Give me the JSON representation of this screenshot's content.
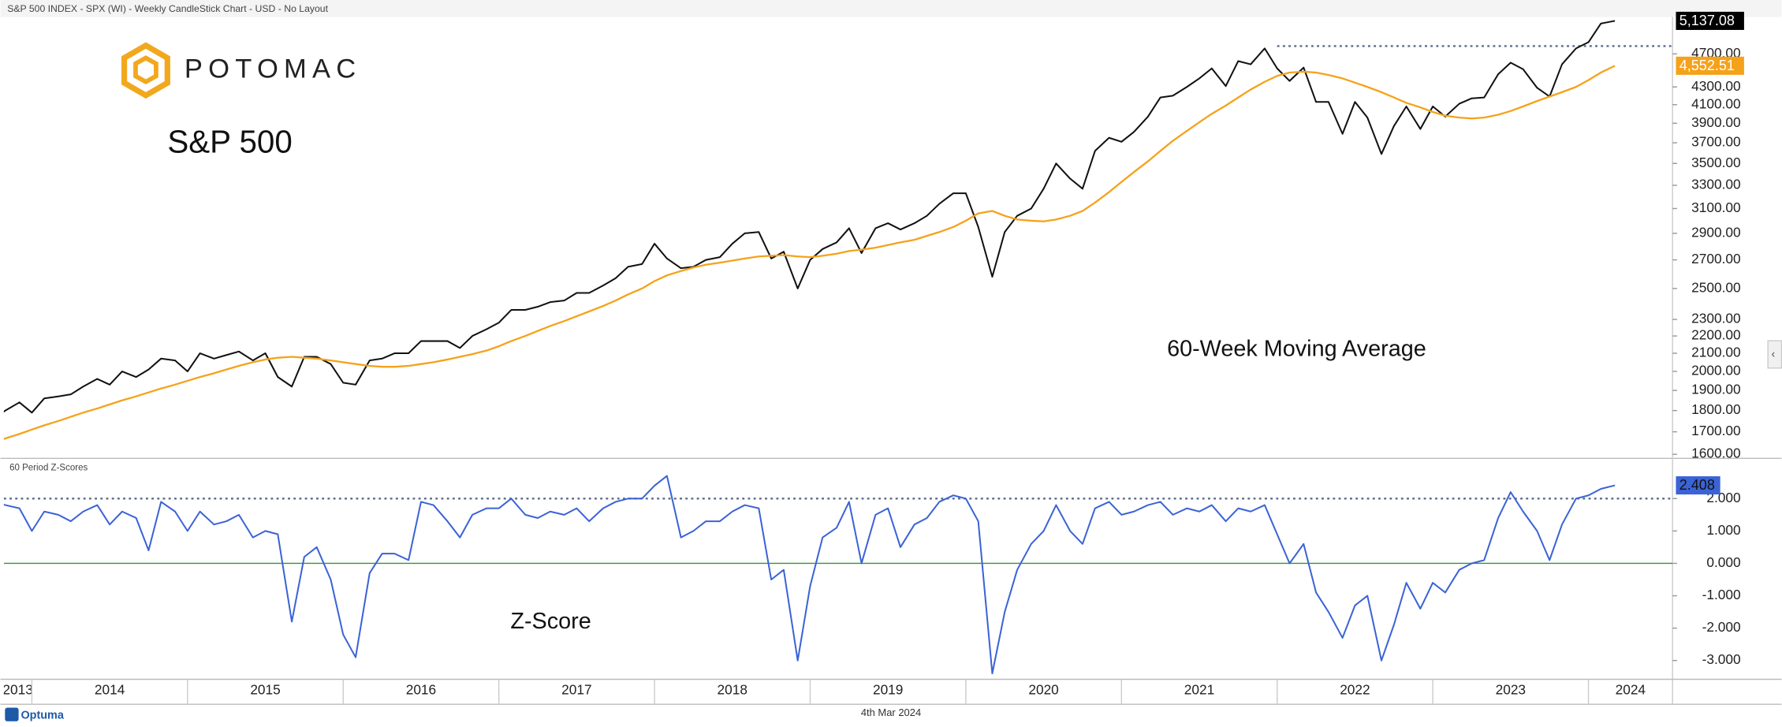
{
  "brand": {
    "logo": "POTOMAC",
    "footer_logo": "Optuma",
    "footer_date": "4th Mar 2024"
  },
  "chart_data": [
    {
      "type": "line",
      "title": "S&P 500 INDEX - SPX (WI) - Weekly CandleStick Chart - USD - No Layout",
      "annotations": [
        "S&P 500",
        "60-Week Moving Average"
      ],
      "log_scale": true,
      "xlim": [
        2013.82,
        2024.54
      ],
      "ylim": [
        1590,
        5190
      ],
      "x": [
        2013.75,
        2013.83,
        2013.92,
        2014.0,
        2014.08,
        2014.17,
        2014.25,
        2014.33,
        2014.42,
        2014.5,
        2014.58,
        2014.67,
        2014.75,
        2014.83,
        2014.92,
        2015.0,
        2015.08,
        2015.17,
        2015.25,
        2015.33,
        2015.42,
        2015.5,
        2015.58,
        2015.67,
        2015.75,
        2015.83,
        2015.92,
        2016.0,
        2016.08,
        2016.17,
        2016.25,
        2016.33,
        2016.42,
        2016.5,
        2016.58,
        2016.67,
        2016.75,
        2016.83,
        2016.92,
        2017.0,
        2017.08,
        2017.17,
        2017.25,
        2017.33,
        2017.42,
        2017.5,
        2017.58,
        2017.67,
        2017.75,
        2017.83,
        2017.92,
        2018.0,
        2018.08,
        2018.17,
        2018.25,
        2018.33,
        2018.42,
        2018.5,
        2018.58,
        2018.67,
        2018.75,
        2018.83,
        2018.92,
        2019.0,
        2019.08,
        2019.17,
        2019.25,
        2019.33,
        2019.42,
        2019.5,
        2019.58,
        2019.67,
        2019.75,
        2019.83,
        2019.92,
        2020.0,
        2020.08,
        2020.17,
        2020.25,
        2020.33,
        2020.42,
        2020.5,
        2020.58,
        2020.67,
        2020.75,
        2020.83,
        2020.92,
        2021.0,
        2021.08,
        2021.17,
        2021.25,
        2021.33,
        2021.42,
        2021.5,
        2021.58,
        2021.67,
        2021.75,
        2021.83,
        2021.92,
        2022.0,
        2022.08,
        2022.17,
        2022.25,
        2022.33,
        2022.42,
        2022.5,
        2022.58,
        2022.67,
        2022.75,
        2022.83,
        2022.92,
        2023.0,
        2023.08,
        2023.17,
        2023.25,
        2023.33,
        2023.42,
        2023.5,
        2023.58,
        2023.67,
        2023.75,
        2023.83,
        2023.92,
        2024.0,
        2024.08,
        2024.17
      ],
      "series": [
        {
          "name": "S&P 500",
          "color": "#111111",
          "last_value_label": "5,137.08",
          "label_fill": "#000000",
          "label_text": "#ffffff",
          "values": [
            1760,
            1800,
            1840,
            1790,
            1860,
            1870,
            1880,
            1920,
            1960,
            1930,
            2000,
            1970,
            2010,
            2070,
            2060,
            2000,
            2100,
            2070,
            2090,
            2110,
            2060,
            2100,
            1970,
            1920,
            2080,
            2080,
            2040,
            1940,
            1930,
            2060,
            2070,
            2100,
            2100,
            2170,
            2170,
            2170,
            2130,
            2200,
            2240,
            2280,
            2360,
            2360,
            2380,
            2410,
            2420,
            2470,
            2470,
            2520,
            2570,
            2650,
            2670,
            2820,
            2710,
            2640,
            2650,
            2700,
            2720,
            2820,
            2900,
            2910,
            2710,
            2760,
            2500,
            2700,
            2780,
            2830,
            2940,
            2750,
            2940,
            2980,
            2930,
            2980,
            3040,
            3140,
            3230,
            3230,
            2950,
            2580,
            2910,
            3040,
            3100,
            3270,
            3500,
            3360,
            3270,
            3620,
            3750,
            3710,
            3810,
            3970,
            4180,
            4200,
            4300,
            4400,
            4520,
            4310,
            4610,
            4570,
            4770,
            4520,
            4370,
            4530,
            4130,
            4130,
            3790,
            4130,
            3960,
            3590,
            3870,
            4080,
            3840,
            4080,
            3970,
            4110,
            4170,
            4180,
            4450,
            4590,
            4510,
            4290,
            4190,
            4570,
            4770,
            4850,
            5100,
            5137.08
          ]
        },
        {
          "name": "60-Week Moving Average",
          "color": "#f5a21b",
          "last_value_label": "4,552.51",
          "label_fill": "#f5a21b",
          "label_text": "#ffffff",
          "values": [
            1650,
            1670,
            1690,
            1710,
            1730,
            1750,
            1770,
            1790,
            1810,
            1830,
            1850,
            1870,
            1890,
            1910,
            1930,
            1950,
            1970,
            1990,
            2010,
            2030,
            2050,
            2065,
            2075,
            2080,
            2075,
            2070,
            2060,
            2050,
            2040,
            2030,
            2025,
            2025,
            2030,
            2040,
            2050,
            2065,
            2080,
            2095,
            2115,
            2140,
            2170,
            2200,
            2230,
            2260,
            2290,
            2320,
            2350,
            2385,
            2420,
            2460,
            2500,
            2550,
            2590,
            2620,
            2645,
            2665,
            2680,
            2695,
            2710,
            2725,
            2730,
            2735,
            2725,
            2720,
            2730,
            2745,
            2765,
            2775,
            2790,
            2810,
            2830,
            2850,
            2880,
            2910,
            2950,
            3000,
            3060,
            3080,
            3040,
            3010,
            3000,
            2995,
            3010,
            3040,
            3080,
            3150,
            3240,
            3330,
            3420,
            3520,
            3620,
            3720,
            3820,
            3910,
            4000,
            4090,
            4180,
            4270,
            4360,
            4430,
            4470,
            4480,
            4470,
            4440,
            4400,
            4350,
            4300,
            4240,
            4180,
            4120,
            4070,
            4020,
            3980,
            3960,
            3950,
            3960,
            3990,
            4030,
            4080,
            4140,
            4190,
            4240,
            4300,
            4380,
            4470,
            4552.51
          ]
        }
      ],
      "yticks": [
        {
          "value": 1600,
          "label": "1600.00"
        },
        {
          "value": 1700,
          "label": "1700.00"
        },
        {
          "value": 1800,
          "label": "1800.00"
        },
        {
          "value": 1900,
          "label": "1900.00"
        },
        {
          "value": 2000,
          "label": "2000.00"
        },
        {
          "value": 2100,
          "label": "2100.00"
        },
        {
          "value": 2200,
          "label": "2200.00"
        },
        {
          "value": 2300,
          "label": "2300.00"
        },
        {
          "value": 2500,
          "label": "2500.00"
        },
        {
          "value": 2700,
          "label": "2700.00"
        },
        {
          "value": 2900,
          "label": "2900.00"
        },
        {
          "value": 3100,
          "label": "3100.00"
        },
        {
          "value": 3300,
          "label": "3300.00"
        },
        {
          "value": 3500,
          "label": "3500.00"
        },
        {
          "value": 3700,
          "label": "3700.00"
        },
        {
          "value": 3900,
          "label": "3900.00"
        },
        {
          "value": 4100,
          "label": "4100.00"
        },
        {
          "value": 4300,
          "label": "4300.00"
        },
        {
          "value": 4700,
          "label": "4700.00"
        }
      ],
      "reference_lines": [
        {
          "value": 4800,
          "from": 2022.0,
          "color": "#5a6b8c",
          "style": "dotted"
        }
      ]
    },
    {
      "type": "line",
      "title": "60 Period Z-Scores",
      "annotations": [
        "Z-Score"
      ],
      "log_scale": false,
      "xlim": [
        2013.82,
        2024.54
      ],
      "ylim": [
        -3.58,
        3.19
      ],
      "x": [
        2013.75,
        2013.83,
        2013.92,
        2014.0,
        2014.08,
        2014.17,
        2014.25,
        2014.33,
        2014.42,
        2014.5,
        2014.58,
        2014.67,
        2014.75,
        2014.83,
        2014.92,
        2015.0,
        2015.08,
        2015.17,
        2015.25,
        2015.33,
        2015.42,
        2015.5,
        2015.58,
        2015.67,
        2015.75,
        2015.83,
        2015.92,
        2016.0,
        2016.08,
        2016.17,
        2016.25,
        2016.33,
        2016.42,
        2016.5,
        2016.58,
        2016.67,
        2016.75,
        2016.83,
        2016.92,
        2017.0,
        2017.08,
        2017.17,
        2017.25,
        2017.33,
        2017.42,
        2017.5,
        2017.58,
        2017.67,
        2017.75,
        2017.83,
        2017.92,
        2018.0,
        2018.08,
        2018.17,
        2018.25,
        2018.33,
        2018.42,
        2018.5,
        2018.58,
        2018.67,
        2018.75,
        2018.83,
        2018.92,
        2019.0,
        2019.08,
        2019.17,
        2019.25,
        2019.33,
        2019.42,
        2019.5,
        2019.58,
        2019.67,
        2019.75,
        2019.83,
        2019.92,
        2020.0,
        2020.08,
        2020.17,
        2020.25,
        2020.33,
        2020.42,
        2020.5,
        2020.58,
        2020.67,
        2020.75,
        2020.83,
        2020.92,
        2021.0,
        2021.08,
        2021.17,
        2021.25,
        2021.33,
        2021.42,
        2021.5,
        2021.58,
        2021.67,
        2021.75,
        2021.83,
        2021.92,
        2022.0,
        2022.08,
        2022.17,
        2022.25,
        2022.33,
        2022.42,
        2022.5,
        2022.58,
        2022.67,
        2022.75,
        2022.83,
        2022.92,
        2023.0,
        2023.08,
        2023.17,
        2023.25,
        2023.33,
        2023.42,
        2023.5,
        2023.58,
        2023.67,
        2023.75,
        2023.83,
        2023.92,
        2024.0,
        2024.08,
        2024.17
      ],
      "series": [
        {
          "name": "60 Period Z-Scores",
          "color": "#3b63d6",
          "last_value_label": "2.408",
          "label_fill": "#3b63d6",
          "label_text": "#111111",
          "values": [
            1.9,
            1.8,
            1.7,
            1.0,
            1.6,
            1.5,
            1.3,
            1.6,
            1.8,
            1.2,
            1.6,
            1.4,
            0.4,
            1.9,
            1.6,
            1.0,
            1.6,
            1.2,
            1.3,
            1.5,
            0.8,
            1.0,
            0.9,
            -1.8,
            0.2,
            0.5,
            -0.5,
            -2.2,
            -2.9,
            -0.3,
            0.3,
            0.3,
            0.1,
            1.9,
            1.8,
            1.3,
            0.8,
            1.5,
            1.7,
            1.7,
            2.0,
            1.5,
            1.4,
            1.6,
            1.5,
            1.7,
            1.3,
            1.7,
            1.9,
            2.0,
            2.0,
            2.4,
            2.7,
            0.8,
            1.0,
            1.3,
            1.3,
            1.6,
            1.8,
            1.7,
            -0.5,
            -0.2,
            -3.0,
            -0.7,
            0.8,
            1.1,
            1.9,
            0.0,
            1.5,
            1.7,
            0.5,
            1.2,
            1.4,
            1.9,
            2.1,
            2.0,
            1.3,
            -3.4,
            -1.5,
            -0.2,
            0.6,
            1.0,
            1.8,
            1.0,
            0.6,
            1.7,
            1.9,
            1.5,
            1.6,
            1.8,
            1.9,
            1.5,
            1.7,
            1.6,
            1.8,
            1.3,
            1.7,
            1.6,
            1.8,
            0.9,
            0.0,
            0.6,
            -0.9,
            -1.5,
            -2.3,
            -1.3,
            -1.0,
            -3.0,
            -1.9,
            -0.6,
            -1.4,
            -0.6,
            -0.9,
            -0.2,
            0.0,
            0.1,
            1.4,
            2.2,
            1.6,
            1.0,
            0.1,
            1.2,
            2.0,
            2.1,
            2.3,
            2.408
          ]
        }
      ],
      "yticks": [
        {
          "value": -3,
          "label": "-3.000"
        },
        {
          "value": -2,
          "label": "-2.000"
        },
        {
          "value": -1,
          "label": "-1.000"
        },
        {
          "value": 0,
          "label": "0.000"
        },
        {
          "value": 1,
          "label": "1.000"
        },
        {
          "value": 2,
          "label": "2.000"
        }
      ],
      "reference_lines": [
        {
          "value": 2,
          "color": "#5a6b8c",
          "style": "dotted"
        },
        {
          "value": 0,
          "color": "#2e9a2e",
          "style": "solid"
        }
      ],
      "xticks": [
        {
          "value": 2013,
          "label": "2013"
        },
        {
          "value": 2014,
          "label": "2014"
        },
        {
          "value": 2015,
          "label": "2015"
        },
        {
          "value": 2016,
          "label": "2016"
        },
        {
          "value": 2017,
          "label": "2017"
        },
        {
          "value": 2018,
          "label": "2018"
        },
        {
          "value": 2019,
          "label": "2019"
        },
        {
          "value": 2020,
          "label": "2020"
        },
        {
          "value": 2021,
          "label": "2021"
        },
        {
          "value": 2022,
          "label": "2022"
        },
        {
          "value": 2023,
          "label": "2023"
        },
        {
          "value": 2024,
          "label": "2024"
        }
      ]
    }
  ]
}
